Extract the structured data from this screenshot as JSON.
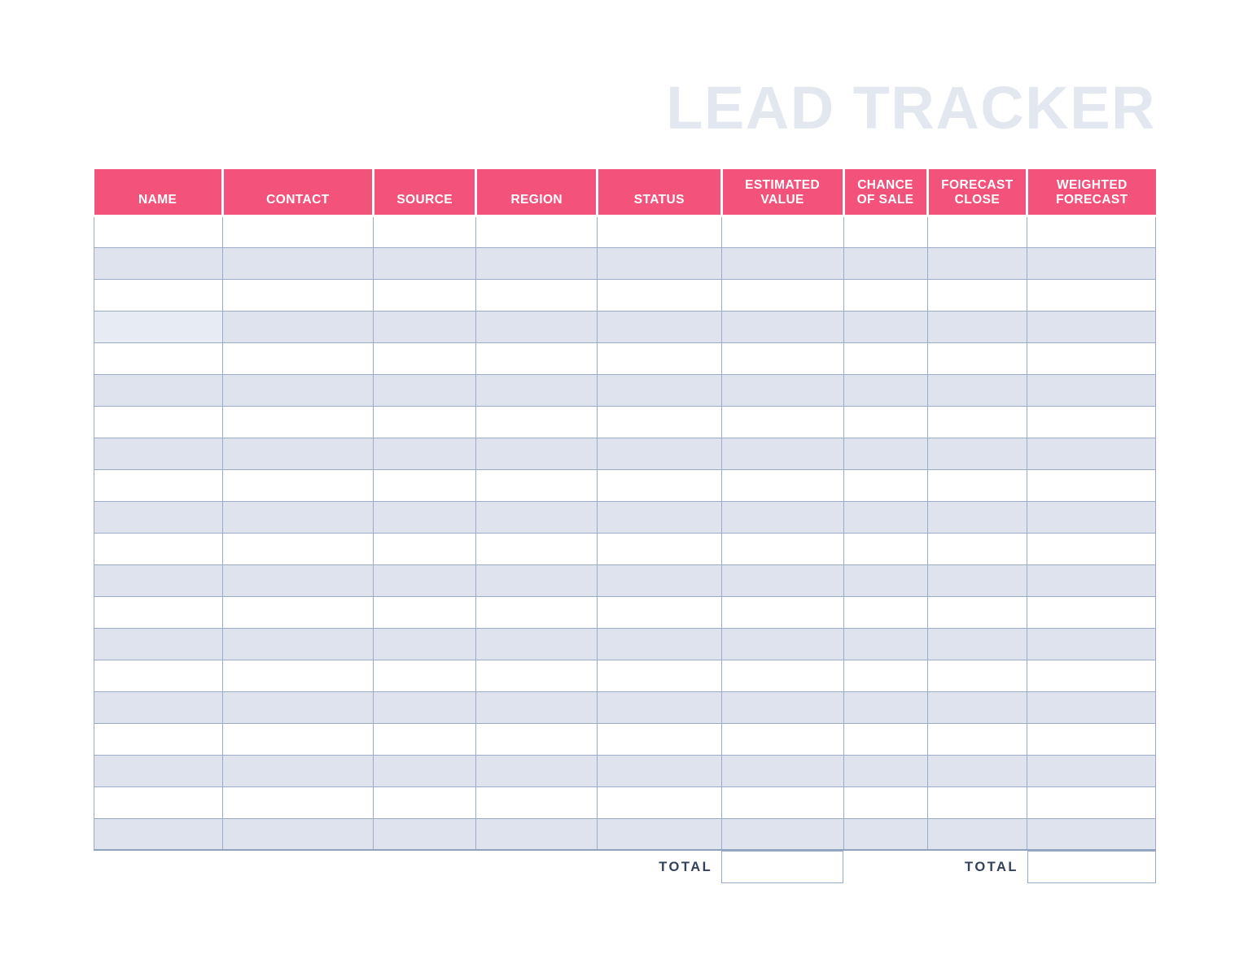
{
  "page": {
    "title": "LEAD TRACKER"
  },
  "colors": {
    "header_bg": "#F3537B",
    "row_alt": "#DEE3ED",
    "row_alt_light": "#E7EBF3",
    "border": "#9AACC8",
    "title_color": "#E3E7F0",
    "total_text": "#33415C",
    "header_text": "#FFFFFF",
    "page_bg": "#FFFFFF"
  },
  "table": {
    "columns": [
      {
        "id": "name",
        "label": "NAME"
      },
      {
        "id": "contact",
        "label": "CONTACT"
      },
      {
        "id": "source",
        "label": "SOURCE"
      },
      {
        "id": "region",
        "label": "REGION"
      },
      {
        "id": "status",
        "label": "STATUS"
      },
      {
        "id": "estimated_value",
        "label": "ESTIMATED VALUE"
      },
      {
        "id": "chance_of_sale",
        "label": "CHANCE OF SALE"
      },
      {
        "id": "forecast_close",
        "label": "FORECAST CLOSE"
      },
      {
        "id": "weighted_forecast",
        "label": "WEIGHTED FORECAST"
      }
    ],
    "row_count": 20,
    "rows": [
      [
        "",
        "",
        "",
        "",
        "",
        "",
        "",
        "",
        ""
      ],
      [
        "",
        "",
        "",
        "",
        "",
        "",
        "",
        "",
        ""
      ],
      [
        "",
        "",
        "",
        "",
        "",
        "",
        "",
        "",
        ""
      ],
      [
        "",
        "",
        "",
        "",
        "",
        "",
        "",
        "",
        ""
      ],
      [
        "",
        "",
        "",
        "",
        "",
        "",
        "",
        "",
        ""
      ],
      [
        "",
        "",
        "",
        "",
        "",
        "",
        "",
        "",
        ""
      ],
      [
        "",
        "",
        "",
        "",
        "",
        "",
        "",
        "",
        ""
      ],
      [
        "",
        "",
        "",
        "",
        "",
        "",
        "",
        "",
        ""
      ],
      [
        "",
        "",
        "",
        "",
        "",
        "",
        "",
        "",
        ""
      ],
      [
        "",
        "",
        "",
        "",
        "",
        "",
        "",
        "",
        ""
      ],
      [
        "",
        "",
        "",
        "",
        "",
        "",
        "",
        "",
        ""
      ],
      [
        "",
        "",
        "",
        "",
        "",
        "",
        "",
        "",
        ""
      ],
      [
        "",
        "",
        "",
        "",
        "",
        "",
        "",
        "",
        ""
      ],
      [
        "",
        "",
        "",
        "",
        "",
        "",
        "",
        "",
        ""
      ],
      [
        "",
        "",
        "",
        "",
        "",
        "",
        "",
        "",
        ""
      ],
      [
        "",
        "",
        "",
        "",
        "",
        "",
        "",
        "",
        ""
      ],
      [
        "",
        "",
        "",
        "",
        "",
        "",
        "",
        "",
        ""
      ],
      [
        "",
        "",
        "",
        "",
        "",
        "",
        "",
        "",
        ""
      ],
      [
        "",
        "",
        "",
        "",
        "",
        "",
        "",
        "",
        ""
      ],
      [
        "",
        "",
        "",
        "",
        "",
        "",
        "",
        "",
        ""
      ]
    ]
  },
  "totals": {
    "estimated_value": {
      "label": "TOTAL",
      "value": ""
    },
    "weighted_forecast": {
      "label": "TOTAL",
      "value": ""
    }
  }
}
